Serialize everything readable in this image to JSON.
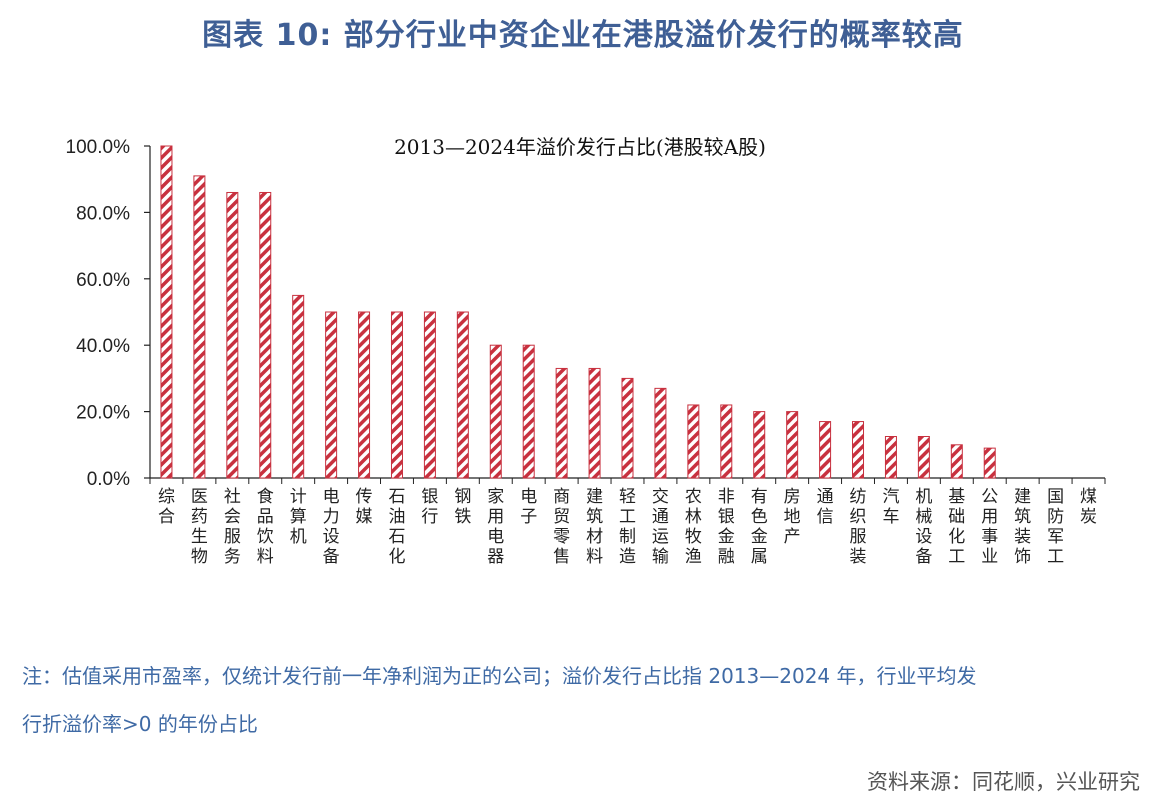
{
  "figure": {
    "title": "图表 10: 部分行业中资企业在港股溢价发行的概率较高",
    "note_line1": "注：估值采用市盈率，仅统计发行前一年净利润为正的公司；溢价发行占比指 2013—2024 年，行业平均发",
    "note_line2": "行折溢价率>0 的年份占比",
    "source": "资料来源：同花顺，兴业研究"
  },
  "colors": {
    "bar": "#c8313f",
    "title": "#3f5f95",
    "note": "#3f6aa5"
  },
  "chart_data": {
    "type": "bar",
    "title": "2013—2024年溢价发行占比(港股较A股)",
    "xlabel": "",
    "ylabel": "",
    "ylim": [
      0,
      100
    ],
    "yticks": [
      "0.0%",
      "20.0%",
      "40.0%",
      "60.0%",
      "80.0%",
      "100.0%"
    ],
    "grid": false,
    "pattern": "diagonal-hatch",
    "categories": [
      "综合",
      "医药生物",
      "社会服务",
      "食品饮料",
      "计算机",
      "电力设备",
      "传媒",
      "石油石化",
      "银行",
      "钢铁",
      "家用电器",
      "电子",
      "商贸零售",
      "建筑材料",
      "轻工制造",
      "交通运输",
      "农林牧渔",
      "非银金融",
      "有色金属",
      "房地产",
      "通信",
      "纺织服装",
      "汽车",
      "机械设备",
      "基础化工",
      "公用事业",
      "建筑装饰",
      "国防军工",
      "煤炭"
    ],
    "values": [
      100,
      91,
      86,
      86,
      55,
      50,
      50,
      50,
      50,
      50,
      40,
      40,
      33,
      33,
      30,
      27,
      22,
      22,
      20,
      20,
      17,
      17,
      12.5,
      12.5,
      10,
      9,
      0,
      0,
      0
    ]
  }
}
